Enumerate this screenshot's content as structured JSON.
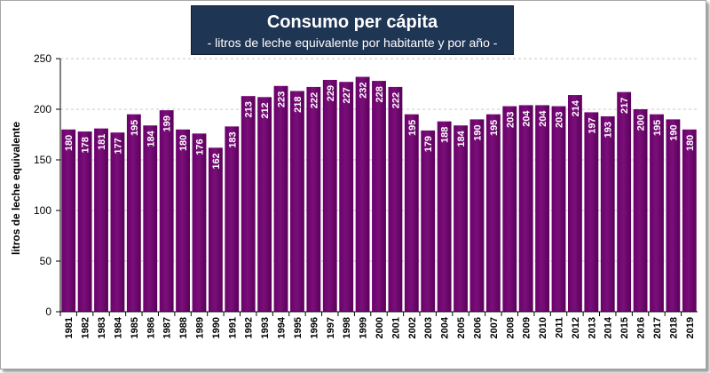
{
  "title": "Consumo per cápita",
  "subtitle": "- litros de leche equivalente por habitante y por año -",
  "chart_data": {
    "type": "bar",
    "title": "Consumo per cápita",
    "subtitle": "- litros de leche equivalente por habitante y por año -",
    "xlabel": "",
    "ylabel": "litros de leche equivalente",
    "ylim": [
      0,
      250
    ],
    "yticks": [
      0,
      50,
      100,
      150,
      200,
      250
    ],
    "categories": [
      "1981",
      "1982",
      "1983",
      "1984",
      "1985",
      "1986",
      "1987",
      "1988",
      "1989",
      "1990",
      "1991",
      "1992",
      "1993",
      "1994",
      "1995",
      "1996",
      "1997",
      "1998",
      "1999",
      "2000",
      "2001",
      "2002",
      "2003",
      "2004",
      "2005",
      "2006",
      "2007",
      "2008",
      "2009",
      "2010",
      "2011",
      "2012",
      "2013",
      "2014",
      "2015",
      "2016",
      "2017",
      "2018",
      "2019"
    ],
    "values": [
      180,
      178,
      181,
      177,
      195,
      184,
      199,
      180,
      176,
      162,
      183,
      213,
      212,
      223,
      218,
      222,
      229,
      227,
      232,
      228,
      222,
      195,
      179,
      188,
      184,
      190,
      195,
      203,
      204,
      204,
      203,
      214,
      197,
      193,
      217,
      200,
      195,
      190,
      180
    ],
    "grid": "horizontal dashed",
    "bar_color": "#660066",
    "bar_highlight_color": "#8a1a8a",
    "label_color": "#ffffff"
  }
}
